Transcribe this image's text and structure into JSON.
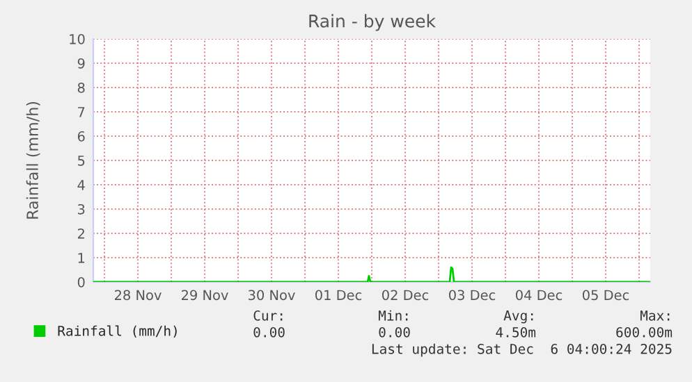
{
  "chart_data": {
    "type": "line",
    "title": "Rain - by week",
    "ylabel": "Rainfall (mm/h)",
    "x": [
      "2025-11-27T20:00",
      "2025-12-01T22:30",
      "2025-12-01T23:00",
      "2025-12-01T23:30",
      "2025-12-03T04:00",
      "2025-12-03T04:30",
      "2025-12-03T05:00",
      "2025-12-03T05:30",
      "2025-12-06T04:00"
    ],
    "series": [
      {
        "name": "Rainfall (mm/h)",
        "color": "#00cc00",
        "values": [
          0,
          0,
          0.25,
          0,
          0,
          0.6,
          0.55,
          0,
          0
        ]
      }
    ],
    "xlim": [
      "2025-11-27T20:00",
      "2025-12-06T04:00"
    ],
    "xticks": [
      {
        "value": "2025-11-28T00:00",
        "label": null
      },
      {
        "value": "2025-11-28T12:00",
        "label": "28 Nov"
      },
      {
        "value": "2025-11-29T00:00",
        "label": null
      },
      {
        "value": "2025-11-29T12:00",
        "label": "29 Nov"
      },
      {
        "value": "2025-11-30T00:00",
        "label": null
      },
      {
        "value": "2025-11-30T12:00",
        "label": "30 Nov"
      },
      {
        "value": "2025-12-01T00:00",
        "label": null
      },
      {
        "value": "2025-12-01T12:00",
        "label": "01 Dec"
      },
      {
        "value": "2025-12-02T00:00",
        "label": null
      },
      {
        "value": "2025-12-02T12:00",
        "label": "02 Dec"
      },
      {
        "value": "2025-12-03T00:00",
        "label": null
      },
      {
        "value": "2025-12-03T12:00",
        "label": "03 Dec"
      },
      {
        "value": "2025-12-04T00:00",
        "label": null
      },
      {
        "value": "2025-12-04T12:00",
        "label": "04 Dec"
      },
      {
        "value": "2025-12-05T00:00",
        "label": null
      },
      {
        "value": "2025-12-05T12:00",
        "label": "05 Dec"
      },
      {
        "value": "2025-12-06T00:00",
        "label": null
      }
    ],
    "ylim": [
      0,
      10
    ],
    "yticks": [
      0,
      1,
      2,
      3,
      4,
      5,
      6,
      7,
      8,
      9,
      10
    ],
    "grid": true,
    "legend": "bottom",
    "marker": "none",
    "line_style": "solid",
    "annotations": [
      "Cur:",
      "Min:",
      "Avg:",
      "Max:",
      "0.00",
      "0.00",
      "4.50m",
      "600.00m",
      "Last update: Sat Dec  6 04:00:24 2025"
    ]
  }
}
